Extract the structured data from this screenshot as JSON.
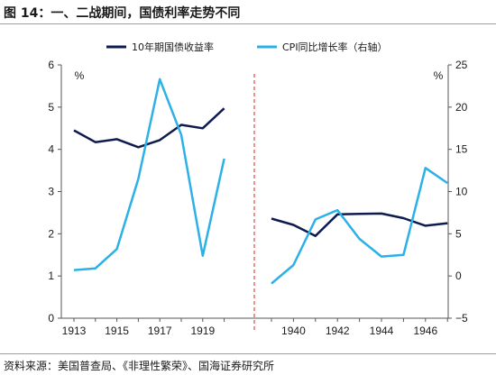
{
  "figure": {
    "title": "图 14：一、二战期间，国债利率走势不同",
    "source": "资料来源：美国普查局、《非理性繁荣》、国海证券研究所"
  },
  "chart_data": {
    "type": "line",
    "legend": {
      "placement": "top",
      "entries": [
        {
          "name": "10年期国债收益率",
          "color": "#0d1b4f"
        },
        {
          "name": "CPI同比增长率（右轴）",
          "color": "#2bb0e8"
        }
      ]
    },
    "left_axis": {
      "unit": "%",
      "ylim": [
        0,
        6
      ],
      "ticks": [
        "0",
        "1",
        "2",
        "3",
        "4",
        "5",
        "6"
      ]
    },
    "right_axis": {
      "unit": "%",
      "ylim": [
        -5,
        25
      ],
      "ticks": [
        "−5",
        "0",
        "5",
        "10",
        "15",
        "20",
        "25"
      ]
    },
    "grid": false,
    "divider": {
      "style": "dashed",
      "color": "#d9261c"
    },
    "panels": [
      {
        "years": [
          1913,
          1914,
          1915,
          1916,
          1917,
          1918,
          1919,
          1920
        ],
        "x_ticks": [
          "1913",
          "1915",
          "1917",
          "1919"
        ],
        "series": [
          {
            "name": "10年期国债收益率",
            "axis": "left",
            "values": [
              4.45,
              4.17,
              4.24,
              4.05,
              4.22,
              4.58,
              4.5,
              4.97
            ]
          },
          {
            "name": "CPI同比增长率（右轴）",
            "axis": "right",
            "values": [
              0.7,
              0.9,
              3.2,
              11.5,
              23.3,
              16.7,
              2.4,
              13.9
            ]
          }
        ]
      },
      {
        "years": [
          1939,
          1940,
          1941,
          1942,
          1943,
          1944,
          1945,
          1946,
          1947
        ],
        "x_ticks": [
          "1940",
          "1942",
          "1944",
          "1946"
        ],
        "series": [
          {
            "name": "10年期国债收益率",
            "axis": "left",
            "values": [
              2.36,
              2.21,
              1.95,
              2.46,
              2.47,
              2.48,
              2.37,
              2.19,
              2.25
            ]
          },
          {
            "name": "CPI同比增长率（右轴）",
            "axis": "right",
            "values": [
              -0.9,
              1.3,
              6.7,
              7.8,
              4.4,
              2.3,
              2.5,
              12.8,
              11.0
            ]
          }
        ]
      }
    ]
  }
}
